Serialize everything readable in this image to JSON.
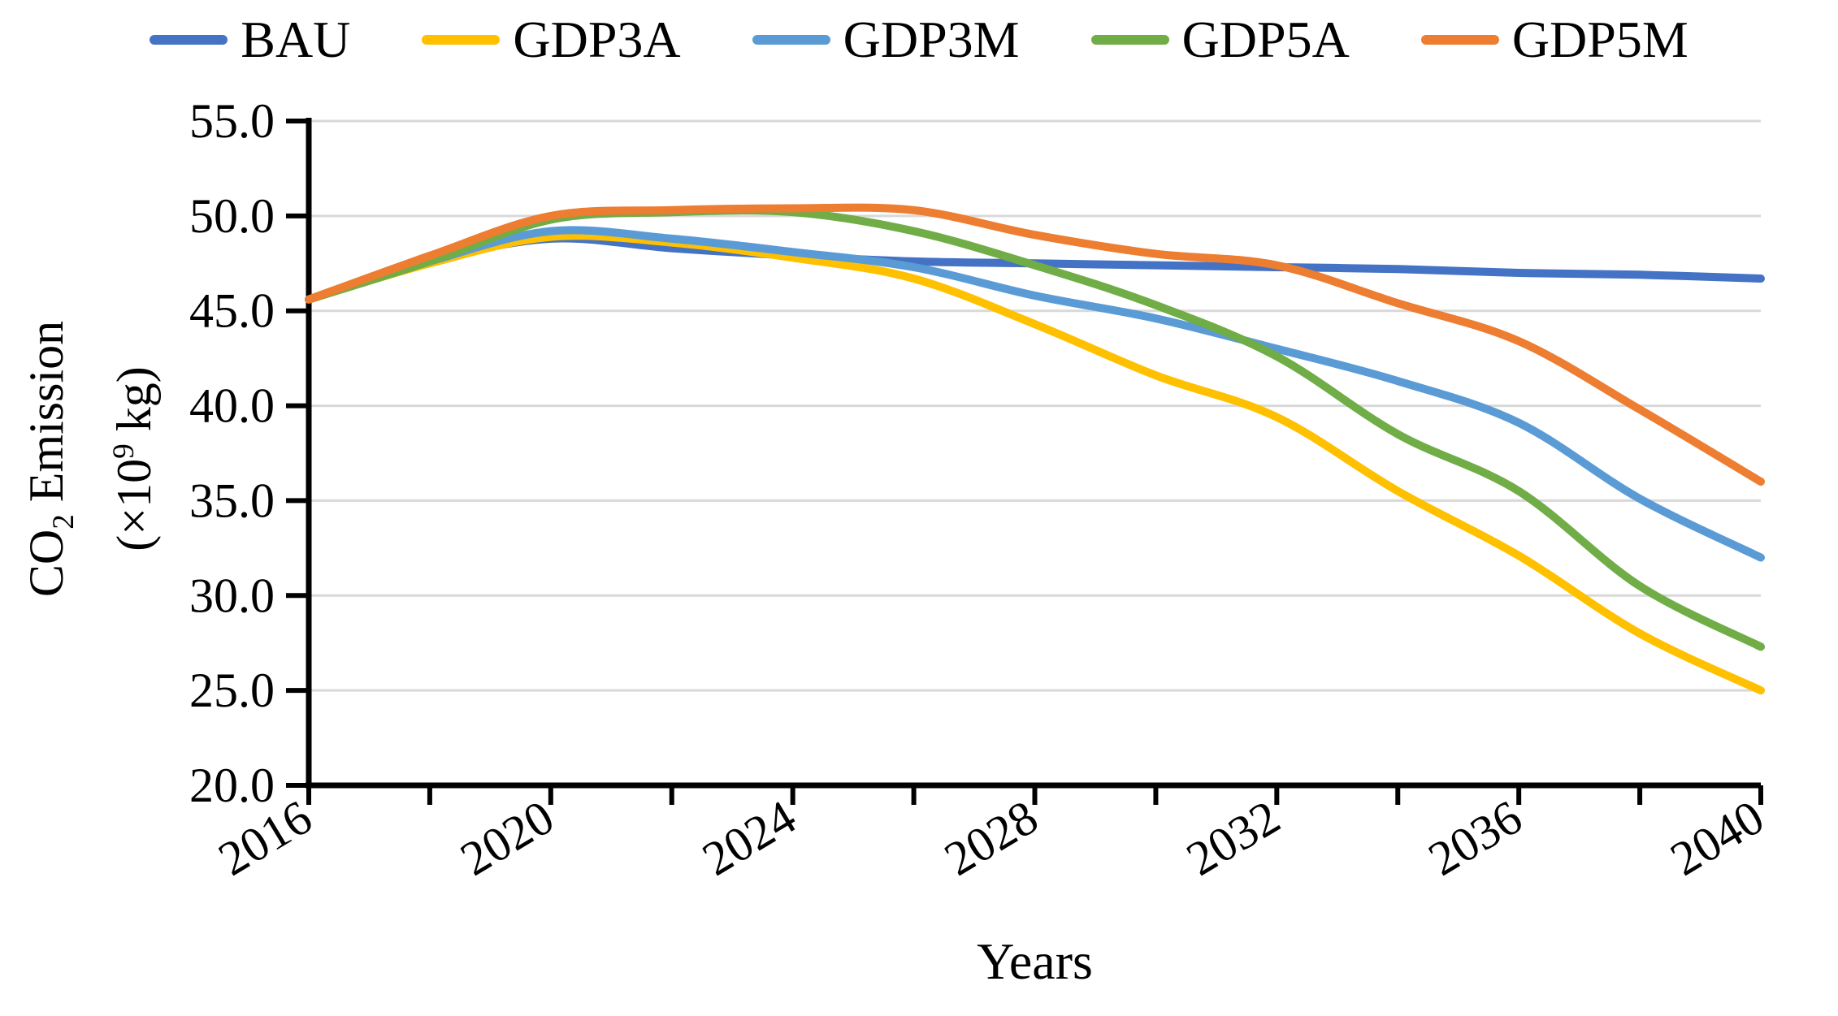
{
  "chart_data": {
    "type": "line",
    "title": "",
    "xlabel": "Years",
    "ylabel_parts": {
      "l1a": "CO",
      "l1sub": "2",
      "l1b": " Emission",
      "l2a": "(×10",
      "l2sup": "9",
      "l2b": " kg)"
    },
    "xlim": [
      2016,
      2040
    ],
    "ylim": [
      20,
      55
    ],
    "grid": "horizontal-only",
    "gridline_color": "#d9d9d9",
    "axis_color": "#000000",
    "legend_position": "top-center",
    "x_tick_years": [
      2016,
      2018,
      2020,
      2022,
      2024,
      2026,
      2028,
      2030,
      2032,
      2034,
      2036,
      2038,
      2040
    ],
    "x_tick_labels": [
      "2016",
      "2020",
      "2024",
      "2028",
      "2032",
      "2036",
      "2040"
    ],
    "x_labeled_years": [
      2016,
      2020,
      2024,
      2028,
      2032,
      2036,
      2040
    ],
    "y_ticks": [
      20,
      25,
      30,
      35,
      40,
      45,
      50,
      55
    ],
    "y_tick_labels": [
      "20.0",
      "25.0",
      "30.0",
      "35.0",
      "40.0",
      "45.0",
      "50.0",
      "55.0"
    ],
    "x": [
      2016,
      2018,
      2020,
      2022,
      2024,
      2026,
      2028,
      2030,
      2032,
      2034,
      2036,
      2038,
      2040
    ],
    "series": [
      {
        "name": "BAU",
        "color": "#4472C4",
        "values": [
          45.6,
          47.6,
          48.8,
          48.3,
          47.9,
          47.6,
          47.5,
          47.4,
          47.3,
          47.2,
          47.0,
          46.9,
          46.7
        ]
      },
      {
        "name": "GDP3A",
        "color": "#FFC000",
        "values": [
          45.6,
          47.5,
          48.9,
          48.6,
          47.8,
          46.7,
          44.3,
          41.6,
          39.4,
          35.5,
          32.1,
          28.0,
          25.0
        ]
      },
      {
        "name": "GDP3M",
        "color": "#5B9BD5",
        "values": [
          45.6,
          47.6,
          49.2,
          48.8,
          48.1,
          47.3,
          45.8,
          44.6,
          43.0,
          41.3,
          39.1,
          35.1,
          32.0
        ]
      },
      {
        "name": "GDP5A",
        "color": "#70AD47",
        "values": [
          45.6,
          47.6,
          49.8,
          50.2,
          50.2,
          49.2,
          47.4,
          45.3,
          42.6,
          38.5,
          35.5,
          30.5,
          27.3
        ]
      },
      {
        "name": "GDP5M",
        "color": "#ED7D31",
        "values": [
          45.6,
          47.9,
          50.0,
          50.3,
          50.4,
          50.3,
          49.0,
          48.0,
          47.4,
          45.4,
          43.4,
          39.8,
          36.0
        ]
      }
    ]
  }
}
